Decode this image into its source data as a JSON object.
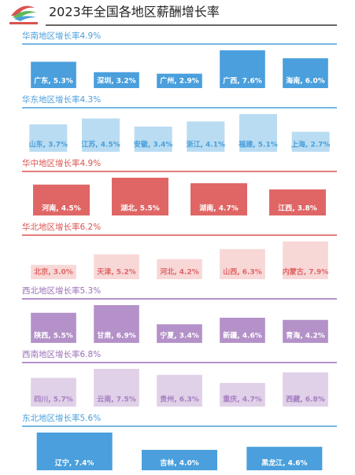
{
  "title": "2023年全国各地区薪酬增长率",
  "chart_data": [
    {
      "type": "bar",
      "title": "华南地区增长率4.9%",
      "color": "#4a9fdc",
      "accent": "#4a9fdc",
      "label_color": "#ffffff",
      "values": [
        5.3,
        3.2,
        2.9,
        7.6,
        6.0
      ],
      "value_labels": [
        "广东, 5.3%",
        "深圳, 3.2%",
        "广州, 2.9%",
        "广西, 7.6%",
        "海南, 6.0%"
      ]
    },
    {
      "type": "bar",
      "title": "华东地区增长率4.3%",
      "color": "#b9dcf2",
      "accent": "#4a9fdc",
      "label_color": "#4a9fdc",
      "values": [
        3.7,
        4.5,
        3.4,
        4.1,
        5.1,
        2.7
      ],
      "value_labels": [
        "山东, 3.7%",
        "江苏, 4.5%",
        "安徽, 3.4%",
        "浙江, 4.1%",
        "福建, 5.1%",
        "上海, 2.7%"
      ]
    },
    {
      "type": "bar",
      "title": "华中地区增长率4.9%",
      "color": "#e06666",
      "accent": "#d9534f",
      "label_color": "#ffffff",
      "values": [
        4.5,
        5.5,
        4.7,
        3.8
      ],
      "value_labels": [
        "河南, 4.5%",
        "湖北, 5.5%",
        "湖南, 4.7%",
        "江西, 3.8%"
      ]
    },
    {
      "type": "bar",
      "title": "华北地区增长率6.2%",
      "color": "#f8d7d7",
      "accent": "#d9534f",
      "label_color": "#e06666",
      "values": [
        3.0,
        5.2,
        4.2,
        6.3,
        7.9
      ],
      "value_labels": [
        "北京, 3.0%",
        "天津, 5.2%",
        "河北, 4.2%",
        "山西, 6.3%",
        "内蒙古, 7.9%"
      ]
    },
    {
      "type": "bar",
      "title": "西北地区增长率5.3%",
      "color": "#b491c8",
      "accent": "#9b6fb8",
      "label_color": "#ffffff",
      "values": [
        5.5,
        6.9,
        3.4,
        4.6,
        4.2
      ],
      "value_labels": [
        "陕西, 5.5%",
        "甘肃, 6.9%",
        "宁夏, 3.4%",
        "新疆, 4.6%",
        "青海, 4.2%"
      ]
    },
    {
      "type": "bar",
      "title": "西南地区增长率6.8%",
      "color": "#e0d0e8",
      "accent": "#9b6fb8",
      "label_color": "#a57fc0",
      "values": [
        5.7,
        7.5,
        6.3,
        4.7,
        6.8
      ],
      "value_labels": [
        "四川, 5.7%",
        "云南, 7.5%",
        "贵州, 6.3%",
        "重庆, 4.7%",
        "西藏, 6.8%"
      ]
    },
    {
      "type": "bar",
      "title": "东北地区增长率5.6%",
      "color": "#4a9fdc",
      "accent": "#4a9fdc",
      "label_color": "#ffffff",
      "values": [
        7.4,
        4.0,
        4.6
      ],
      "value_labels": [
        "辽宁, 7.4%",
        "吉林, 4.0%",
        "黑龙江, 4.6%"
      ]
    }
  ]
}
